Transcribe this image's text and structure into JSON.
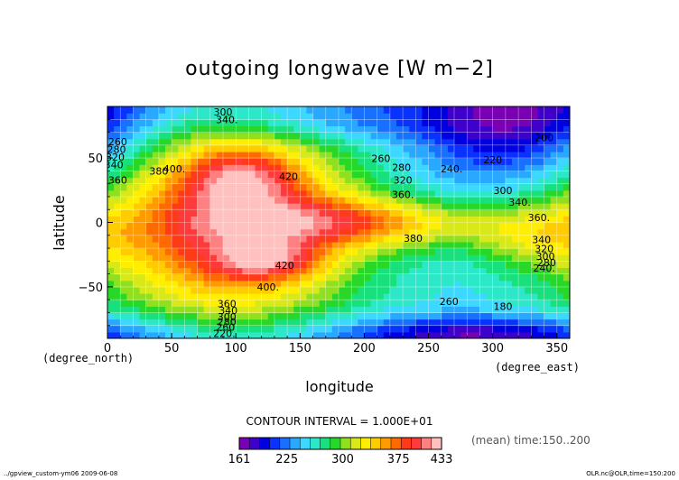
{
  "chart_data": {
    "type": "heatmap",
    "title": "outgoing longwave [W m−2]",
    "xlabel": "longitude",
    "ylabel": "latitude",
    "x_unit": "(degree_east)",
    "y_unit": "(degree_north)",
    "xlim": [
      0,
      360
    ],
    "ylim": [
      -90,
      90
    ],
    "x_ticks": [
      "0",
      "50",
      "100",
      "150",
      "200",
      "250",
      "300",
      "350"
    ],
    "y_ticks": [
      "50",
      "0",
      "−50"
    ],
    "grid": true,
    "contour_interval_text": "CONTOUR INTERVAL = 1.000E+01",
    "colorbar": {
      "min": 161,
      "max": 433,
      "tick_labels": [
        "161",
        "225",
        "300",
        "375",
        "433"
      ],
      "colors": [
        "#7a00b4",
        "#3f00cc",
        "#0000e0",
        "#0a32ff",
        "#1870ff",
        "#28a8ff",
        "#3cd8ff",
        "#2ce8c8",
        "#18e07c",
        "#28d828",
        "#90e020",
        "#d8e818",
        "#ffee00",
        "#ffcc00",
        "#ff9a00",
        "#ff6a00",
        "#ff3a18",
        "#ff3a3a",
        "#ff8080",
        "#ffc0c0"
      ]
    },
    "contour_labels": [
      {
        "text": "300",
        "x": 90,
        "y": 83
      },
      {
        "text": "340.",
        "x": 93,
        "y": 77
      },
      {
        "text": "260",
        "x": 8,
        "y": 60
      },
      {
        "text": "280",
        "x": 7,
        "y": 54
      },
      {
        "text": "320",
        "x": 6,
        "y": 48
      },
      {
        "text": "340",
        "x": 5,
        "y": 42
      },
      {
        "text": "360",
        "x": 8,
        "y": 30
      },
      {
        "text": "380",
        "x": 40,
        "y": 37
      },
      {
        "text": "400.",
        "x": 52,
        "y": 39
      },
      {
        "text": "420",
        "x": 141,
        "y": 33
      },
      {
        "text": "260",
        "x": 213,
        "y": 47
      },
      {
        "text": "280",
        "x": 229,
        "y": 40
      },
      {
        "text": "240.",
        "x": 268,
        "y": 39
      },
      {
        "text": "220",
        "x": 300,
        "y": 46
      },
      {
        "text": "200",
        "x": 340,
        "y": 63
      },
      {
        "text": "320",
        "x": 230,
        "y": 30
      },
      {
        "text": "360.",
        "x": 230,
        "y": 19
      },
      {
        "text": "300",
        "x": 308,
        "y": 22
      },
      {
        "text": "340.",
        "x": 321,
        "y": 13
      },
      {
        "text": "360.",
        "x": 336,
        "y": 1
      },
      {
        "text": "380",
        "x": 238,
        "y": -15
      },
      {
        "text": "420",
        "x": 138,
        "y": -36
      },
      {
        "text": "400.",
        "x": 125,
        "y": -53
      },
      {
        "text": "340",
        "x": 338,
        "y": -16
      },
      {
        "text": "320",
        "x": 340,
        "y": -23
      },
      {
        "text": "300",
        "x": 341,
        "y": -29
      },
      {
        "text": "280",
        "x": 342,
        "y": -34
      },
      {
        "text": "240.",
        "x": 340,
        "y": -38
      },
      {
        "text": "260",
        "x": 266,
        "y": -64
      },
      {
        "text": "180",
        "x": 308,
        "y": -68
      },
      {
        "text": "360",
        "x": 93,
        "y": -66
      },
      {
        "text": "340",
        "x": 94,
        "y": -71
      },
      {
        "text": "300",
        "x": 93,
        "y": -76
      },
      {
        "text": "280",
        "x": 93,
        "y": -80
      },
      {
        "text": "260",
        "x": 92,
        "y": -84
      },
      {
        "text": "220.",
        "x": 91,
        "y": -89
      }
    ]
  },
  "annotations": {
    "mean_label": "(mean) time:150..200",
    "footer_left": "../gpview_custom-ym06  2009-06-08",
    "footer_right": "OLR.nc@OLR,time=150:200"
  }
}
